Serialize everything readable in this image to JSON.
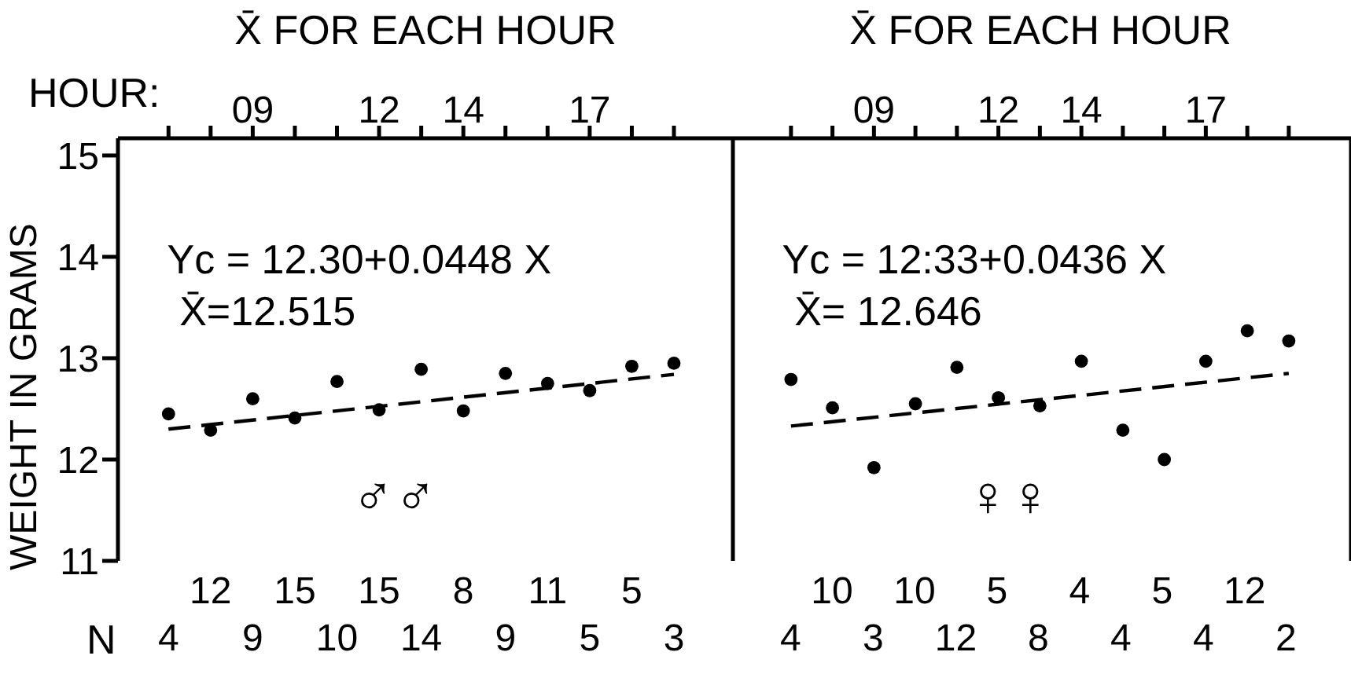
{
  "chart_data": [
    {
      "type": "scatter",
      "xlabel": "X̄ FOR EACH HOUR",
      "ylabel": "WEIGHT IN GRAMS",
      "xlim": [
        5.8,
        20.4
      ],
      "ylim": [
        11,
        15.17
      ],
      "xticks": [
        {
          "value": 7,
          "label": null
        },
        {
          "value": 8,
          "label": null
        },
        {
          "value": 9,
          "label": "09"
        },
        {
          "value": 10,
          "label": null
        },
        {
          "value": 11,
          "label": null
        },
        12,
        {
          "value": 13,
          "label": null
        },
        14,
        {
          "value": 15,
          "label": null
        },
        {
          "value": 16,
          "label": null
        },
        17,
        {
          "value": 18,
          "label": null
        },
        {
          "value": 19,
          "label": null
        }
      ],
      "yticks": [
        11,
        12,
        13,
        14,
        15
      ],
      "series": [
        {
          "type": "scatter",
          "marker": "circle",
          "color": "#000000",
          "x": [
            7,
            8,
            9,
            10,
            11,
            12,
            13,
            14,
            15,
            16,
            17,
            18,
            19
          ],
          "values": [
            12.45,
            12.29,
            12.6,
            12.41,
            12.77,
            12.49,
            12.89,
            12.48,
            12.85,
            12.75,
            12.68,
            12.92,
            12.95
          ]
        },
        {
          "type": "line",
          "line_style": "dashed",
          "color": "#000000",
          "x": [
            7,
            19
          ],
          "values": [
            12.3,
            12.84
          ]
        }
      ],
      "annotations": [
        "Yc = 12.30+0.0448 X",
        "X̄=12.515",
        "♂♂",
        "HOUR:",
        "N",
        "4",
        "12",
        "9",
        "15",
        "10",
        "15",
        "14",
        "8",
        "9",
        "11",
        "5",
        "5",
        "3"
      ]
    },
    {
      "type": "scatter",
      "xlabel": "X̄ FOR EACH HOUR",
      "tick_labels": "x",
      "xlim": [
        5.6,
        20.5
      ],
      "ylim": [
        11,
        15.17
      ],
      "xticks": [
        {
          "value": 7,
          "label": null
        },
        {
          "value": 8,
          "label": null
        },
        {
          "value": 9,
          "label": "09"
        },
        {
          "value": 10,
          "label": null
        },
        {
          "value": 11,
          "label": null
        },
        12,
        {
          "value": 13,
          "label": null
        },
        14,
        {
          "value": 15,
          "label": null
        },
        {
          "value": 16,
          "label": null
        },
        17,
        {
          "value": 18,
          "label": null
        },
        {
          "value": 19,
          "label": null
        }
      ],
      "yticks": [
        11,
        12,
        13,
        14,
        15
      ],
      "series": [
        {
          "type": "scatter",
          "marker": "circle",
          "color": "#000000",
          "x": [
            7,
            8,
            9,
            10,
            11,
            12,
            13,
            14,
            15,
            16,
            17,
            18,
            19
          ],
          "values": [
            12.79,
            12.51,
            11.92,
            12.55,
            12.91,
            12.61,
            12.53,
            12.97,
            12.29,
            12.0,
            12.97,
            13.27,
            13.17
          ]
        },
        {
          "type": "line",
          "line_style": "dashed",
          "color": "#000000",
          "x": [
            7,
            19
          ],
          "values": [
            12.33,
            12.85
          ]
        }
      ],
      "annotations": [
        "Yc = 12:33+0.0436 X",
        "X̄= 12.646",
        "♀♀",
        "4",
        "10",
        "3",
        "10",
        "12",
        "5",
        "8",
        "4",
        "4",
        "5",
        "4",
        "12",
        "2"
      ]
    }
  ]
}
